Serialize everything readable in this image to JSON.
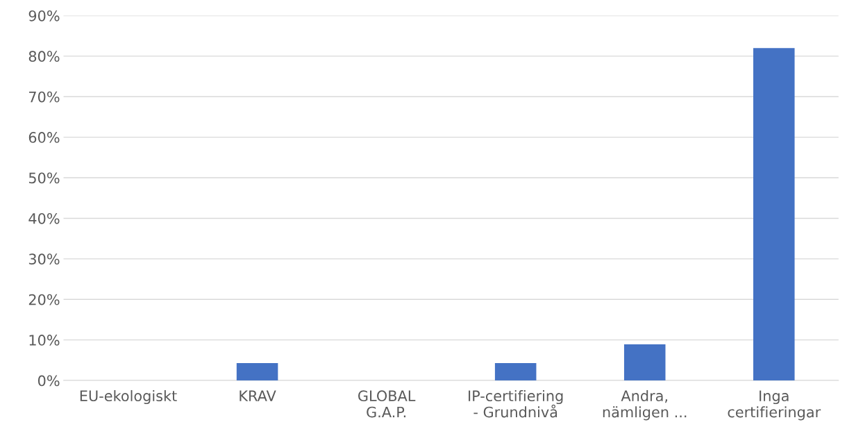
{
  "chart_data": {
    "type": "bar",
    "categories": [
      "EU-ekologiskt",
      "KRAV",
      "GLOBAL\nG.A.P.",
      "IP-certifiering\n- Grundnivå",
      "Andra,\nnämligen ...",
      "Inga\ncertifieringar"
    ],
    "values": [
      0,
      4.3,
      0,
      4.3,
      8.9,
      82
    ],
    "color": "#4472c4",
    "ylim": [
      0,
      90
    ],
    "yticks": [
      {
        "value": 0,
        "label": "0%"
      },
      {
        "value": 10,
        "label": "10%"
      },
      {
        "value": 20,
        "label": "20%"
      },
      {
        "value": 30,
        "label": "30%"
      },
      {
        "value": 40,
        "label": "40%"
      },
      {
        "value": 50,
        "label": "50%"
      },
      {
        "value": 60,
        "label": "60%"
      },
      {
        "value": 70,
        "label": "70%"
      },
      {
        "value": 80,
        "label": "80%"
      },
      {
        "value": 90,
        "label": "90%"
      }
    ],
    "grid": "y"
  }
}
